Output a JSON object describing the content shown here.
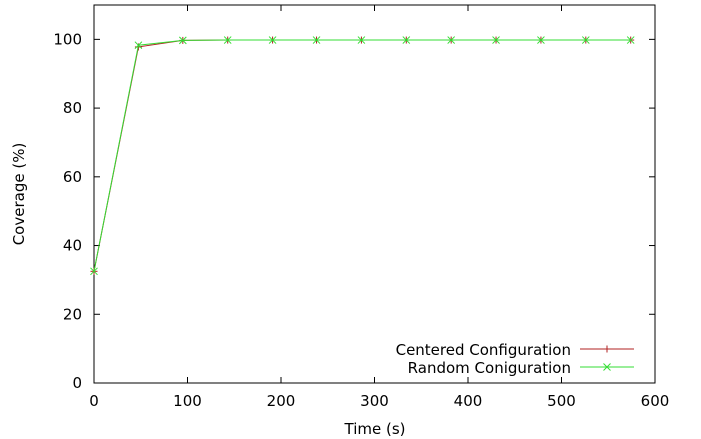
{
  "chart_data": {
    "type": "line",
    "xlabel": "Time (s)",
    "ylabel": "Coverage (%)",
    "xlim": [
      0,
      600
    ],
    "ylim": [
      0,
      110
    ],
    "xticks": [
      0,
      100,
      200,
      300,
      400,
      500,
      600
    ],
    "yticks": [
      0,
      20,
      40,
      60,
      80,
      100
    ],
    "grid": false,
    "legend_position": "bottom-right",
    "series": [
      {
        "name": "Centered Configuration",
        "marker": "+",
        "color": "#b22222",
        "x": [
          0,
          47.5,
          95,
          143,
          191,
          238,
          286,
          334,
          382,
          430,
          478,
          526,
          574
        ],
        "y": [
          32.5,
          97.8,
          99.7,
          99.8,
          99.8,
          99.8,
          99.8,
          99.8,
          99.8,
          99.8,
          99.8,
          99.8,
          99.8
        ]
      },
      {
        "name": "Random Coniguration",
        "marker": "x",
        "color": "#33dd33",
        "x": [
          0,
          47.5,
          95,
          143,
          191,
          238,
          286,
          334,
          382,
          430,
          478,
          526,
          574
        ],
        "y": [
          32.5,
          98.3,
          99.7,
          99.8,
          99.8,
          99.8,
          99.8,
          99.8,
          99.8,
          99.8,
          99.8,
          99.8,
          99.8
        ]
      }
    ]
  }
}
